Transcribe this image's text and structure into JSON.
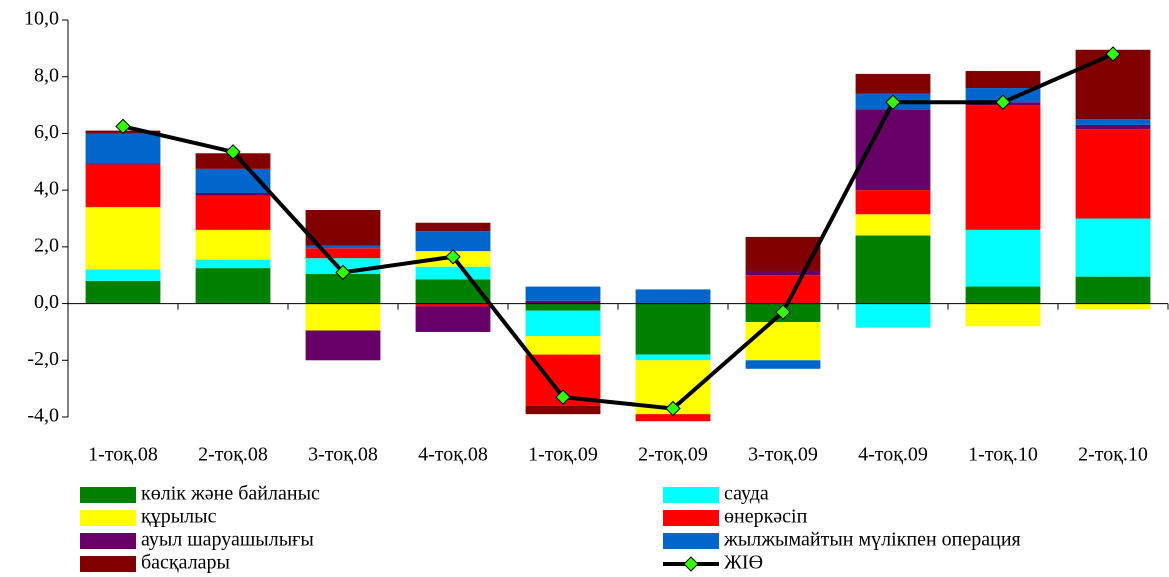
{
  "chart_data": {
    "type": "bar",
    "stacked": true,
    "categories": [
      "1-тоқ.08",
      "2-тоқ.08",
      "3-тоқ.08",
      "4-тоқ.08",
      "1-тоқ.09",
      "2-тоқ.09",
      "3-тоқ.09",
      "4-тоқ.09",
      "1-тоқ.10",
      "2-тоқ.10"
    ],
    "ylim": [
      -4,
      10
    ],
    "yticks": [
      {
        "value": -4,
        "label": "-4,0"
      },
      {
        "value": -2,
        "label": "-2,0"
      },
      {
        "value": 0,
        "label": "0,0"
      },
      {
        "value": 2,
        "label": "2,0"
      },
      {
        "value": 4,
        "label": "4,0"
      },
      {
        "value": 6,
        "label": "6,0"
      },
      {
        "value": 8,
        "label": "8,0"
      },
      {
        "value": 10,
        "label": "10,0"
      }
    ],
    "grid": false,
    "series": [
      {
        "name": "көлік және байланыс",
        "color": "#008000",
        "values": [
          0.8,
          1.25,
          1.05,
          0.85,
          -0.25,
          -1.8,
          -0.65,
          2.4,
          0.6,
          0.95
        ]
      },
      {
        "name": "сауда",
        "color": "#00ffff",
        "values": [
          0.4,
          0.3,
          0.55,
          0.45,
          -0.9,
          -0.2,
          0,
          -0.85,
          2.0,
          2.05
        ]
      },
      {
        "name": "құрылыс",
        "color": "#ffff00",
        "values": [
          2.2,
          1.05,
          -0.95,
          0.55,
          -0.65,
          -1.9,
          -1.35,
          0.75,
          -0.8,
          -0.2
        ]
      },
      {
        "name": "өнеркәсіп",
        "color": "#ff0000",
        "values": [
          1.5,
          1.2,
          0.35,
          -0.1,
          -1.8,
          -0.25,
          1.0,
          0.85,
          4.4,
          3.15
        ]
      },
      {
        "name": "ауыл шаруашылығы",
        "color": "#660066",
        "values": [
          0.05,
          0.1,
          -1.05,
          -0.9,
          0.1,
          0,
          0.15,
          2.85,
          0.1,
          0.15
        ]
      },
      {
        "name": "жылжымайтын мүлікпен операция",
        "color": "#0066cc",
        "values": [
          1.05,
          0.85,
          0.1,
          0.7,
          0.5,
          0.5,
          -0.3,
          0.55,
          0.5,
          0.2
        ]
      },
      {
        "name": "басқалары",
        "color": "#800000",
        "values": [
          0.1,
          0.55,
          1.25,
          0.3,
          -0.3,
          0,
          1.2,
          0.7,
          0.6,
          2.45
        ]
      },
      {
        "name": "ЖІӨ",
        "type": "line",
        "color": "#000000",
        "marker_color": "#33ff00",
        "values": [
          6.25,
          5.35,
          1.1,
          1.65,
          -3.3,
          -3.7,
          -0.3,
          7.1,
          7.1,
          8.8
        ]
      }
    ]
  }
}
